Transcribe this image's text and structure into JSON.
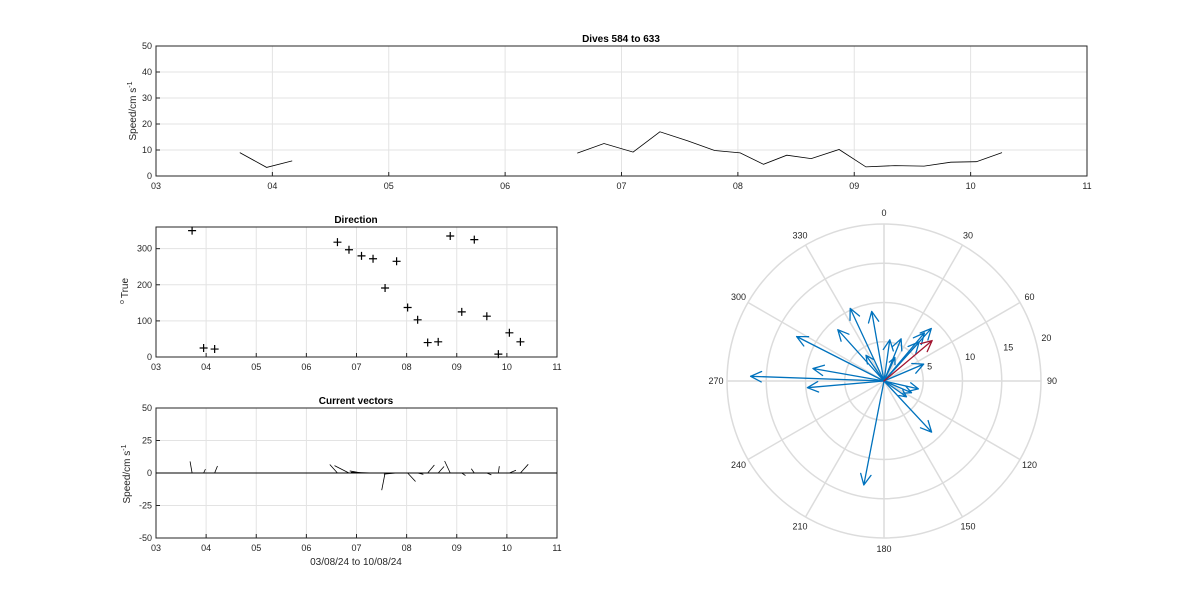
{
  "chart_data": [
    {
      "id": "speed",
      "type": "line",
      "title": "Dives 584 to 633",
      "ylabel": "Speed/cm s",
      "ylabel_sup": "-1",
      "xlim": [
        3,
        11
      ],
      "ylim": [
        0,
        50
      ],
      "xticks": [
        "03",
        "04",
        "05",
        "06",
        "07",
        "08",
        "09",
        "10",
        "11"
      ],
      "yticks": [
        0,
        10,
        20,
        30,
        40,
        50
      ],
      "grid": true,
      "series": [
        {
          "segments": [
            [
              [
                3.72,
                9
              ],
              [
                3.95,
                3.3
              ],
              [
                4.17,
                5.8
              ]
            ],
            [
              [
                6.62,
                8.8
              ],
              [
                6.85,
                12.5
              ],
              [
                7.1,
                9.2
              ],
              [
                7.33,
                17
              ],
              [
                7.57,
                13.5
              ],
              [
                7.8,
                9.8
              ],
              [
                8.02,
                8.9
              ],
              [
                8.22,
                4.5
              ],
              [
                8.42,
                8
              ],
              [
                8.63,
                6.7
              ],
              [
                8.87,
                10.2
              ],
              [
                9.1,
                3.5
              ],
              [
                9.35,
                4
              ],
              [
                9.6,
                3.8
              ],
              [
                9.83,
                5.3
              ],
              [
                10.05,
                5.5
              ],
              [
                10.27,
                9
              ]
            ]
          ]
        }
      ]
    },
    {
      "id": "direction",
      "type": "scatter",
      "title": "Direction",
      "ylabel": "True",
      "ylabel_sup": "o",
      "xlim": [
        3,
        11
      ],
      "ylim": [
        0,
        360
      ],
      "xticks": [
        "03",
        "04",
        "05",
        "06",
        "07",
        "08",
        "09",
        "10",
        "11"
      ],
      "yticks": [
        0,
        100,
        200,
        300
      ],
      "grid": true,
      "marker": "+",
      "points": [
        [
          3.72,
          350
        ],
        [
          3.95,
          25
        ],
        [
          4.17,
          22
        ],
        [
          6.62,
          318
        ],
        [
          6.85,
          297
        ],
        [
          7.1,
          280
        ],
        [
          7.33,
          272
        ],
        [
          7.57,
          191
        ],
        [
          7.8,
          265
        ],
        [
          8.02,
          137
        ],
        [
          8.22,
          103
        ],
        [
          8.42,
          40
        ],
        [
          8.63,
          42
        ],
        [
          8.87,
          335
        ],
        [
          9.1,
          125
        ],
        [
          9.35,
          325
        ],
        [
          9.6,
          113
        ],
        [
          9.83,
          8
        ],
        [
          10.05,
          67
        ],
        [
          10.27,
          42
        ]
      ]
    },
    {
      "id": "vectors",
      "type": "line",
      "title": "Current vectors",
      "ylabel": "Speed/cm s",
      "ylabel_sup": "-1",
      "xlabel": "03/08/24 to 10/08/24",
      "xlim": [
        3,
        11
      ],
      "ylim": [
        -50,
        50
      ],
      "xticks": [
        "03",
        "04",
        "05",
        "06",
        "07",
        "08",
        "09",
        "10",
        "11"
      ],
      "yticks": [
        50,
        25,
        0,
        -25,
        -50
      ],
      "grid": true,
      "baseline_x": [
        3,
        11
      ],
      "vectors": [
        [
          3.72,
          9,
          350
        ],
        [
          3.95,
          3.3,
          25
        ],
        [
          4.17,
          5.8,
          22
        ],
        [
          6.62,
          8.8,
          318
        ],
        [
          6.85,
          12.5,
          297
        ],
        [
          7.1,
          9.2,
          280
        ],
        [
          7.33,
          17,
          272
        ],
        [
          7.57,
          13.5,
          191
        ],
        [
          7.8,
          9.8,
          265
        ],
        [
          8.02,
          8.9,
          137
        ],
        [
          8.22,
          4.5,
          103
        ],
        [
          8.42,
          8,
          40
        ],
        [
          8.63,
          6.7,
          42
        ],
        [
          8.87,
          10.2,
          335
        ],
        [
          9.1,
          3.5,
          125
        ],
        [
          9.35,
          4,
          325
        ],
        [
          9.6,
          3.8,
          113
        ],
        [
          9.83,
          5.3,
          8
        ],
        [
          10.05,
          5.5,
          67
        ],
        [
          10.27,
          9,
          42
        ]
      ]
    },
    {
      "id": "compass",
      "type": "polar",
      "rmax": 20,
      "rticks": [
        5,
        10,
        15,
        20
      ],
      "theta_ticks": [
        0,
        30,
        60,
        90,
        120,
        150,
        180,
        210,
        240,
        270,
        300,
        330
      ],
      "theta_zero": "top",
      "theta_direction": "clockwise",
      "grid": true,
      "arrow_color": "#0072bd",
      "mean_arrow_color": "#a2142f",
      "arrows": [
        [
          350,
          9
        ],
        [
          25,
          3.3
        ],
        [
          22,
          5.8
        ],
        [
          318,
          8.8
        ],
        [
          297,
          12.5
        ],
        [
          280,
          9.2
        ],
        [
          272,
          17
        ],
        [
          191,
          13.5
        ],
        [
          265,
          9.8
        ],
        [
          137,
          8.9
        ],
        [
          103,
          4.5
        ],
        [
          40,
          8
        ],
        [
          42,
          6.7
        ],
        [
          335,
          10.2
        ],
        [
          125,
          3.5
        ],
        [
          325,
          4
        ],
        [
          113,
          3.8
        ],
        [
          8,
          5.3
        ],
        [
          67,
          5.5
        ],
        [
          42,
          9
        ]
      ],
      "mean_arrow": [
        50,
        8
      ]
    }
  ]
}
